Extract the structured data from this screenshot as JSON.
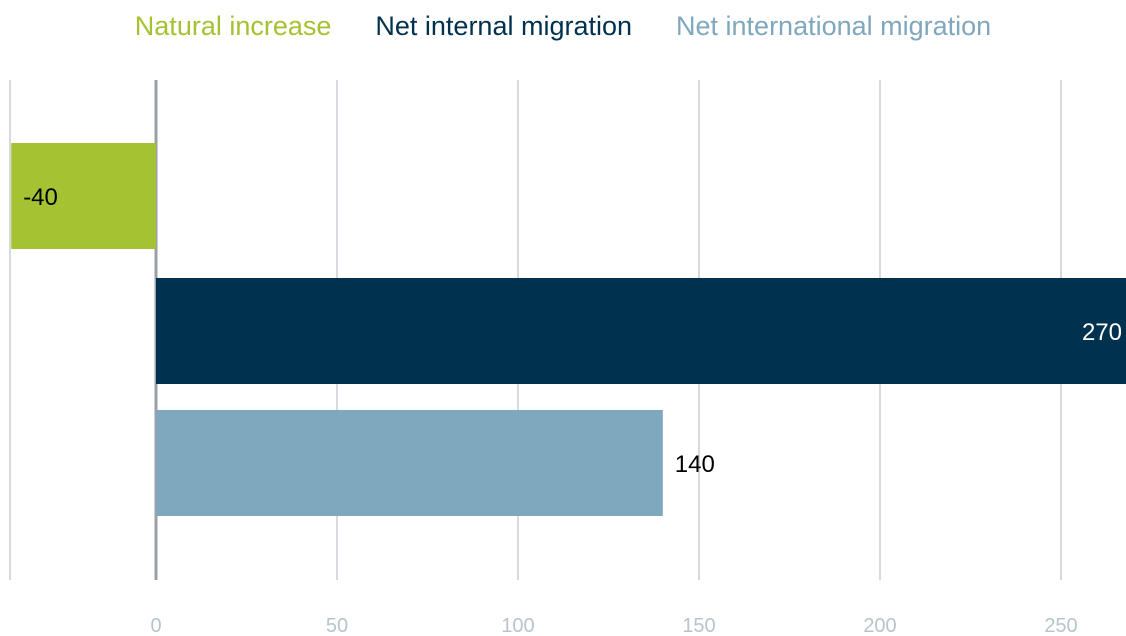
{
  "legend": {
    "natural": "Natural increase",
    "internal": "Net internal migration",
    "international": "Net international migration"
  },
  "colors": {
    "natural": "#a4c232",
    "internal": "#00314f",
    "international": "#7fa7bd",
    "grid": "#c9cdd6",
    "zero": "#9aa0a8",
    "tick": "#b8c4cc"
  },
  "chart_data": {
    "type": "bar",
    "orientation": "horizontal",
    "categories": [
      "Natural increase",
      "Net internal migration",
      "Net international migration"
    ],
    "values": [
      -40,
      270,
      140
    ],
    "labels": [
      "-40",
      "270",
      "140"
    ],
    "xlim": [
      -40,
      270
    ],
    "xticks": [
      0,
      50,
      100,
      150,
      200,
      250
    ],
    "xtick_labels": [
      "0",
      "50",
      "100",
      "150",
      "200",
      "250"
    ],
    "grid": true,
    "legend_position": "top"
  }
}
